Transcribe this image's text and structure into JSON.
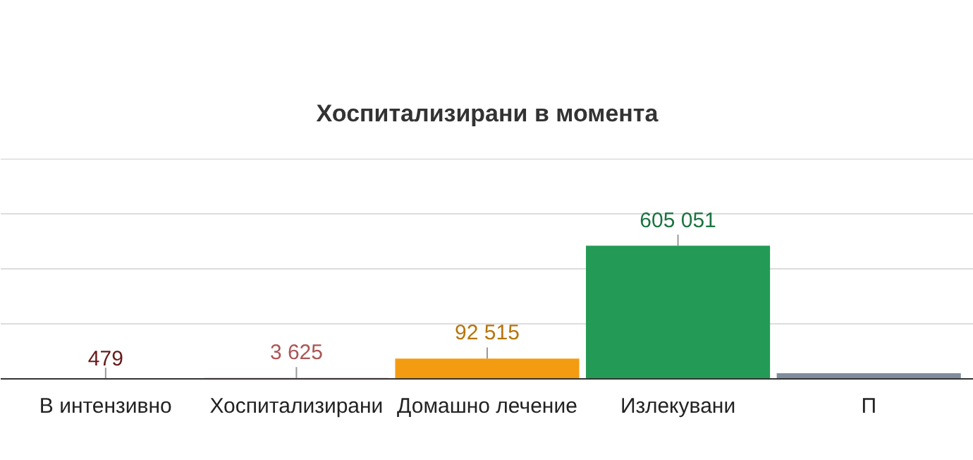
{
  "chart_data": {
    "type": "bar",
    "title": "Хоспитализирани в момента",
    "categories": [
      "В интензивно",
      "Хоспитализирани",
      "Домашно лечение",
      "Излекувани",
      "П"
    ],
    "values": [
      479,
      3625,
      92515,
      605051,
      26000
    ],
    "colors": [
      "#8b2323",
      "#e57373",
      "#f39c12",
      "#239b56",
      "#7f8c9d"
    ],
    "value_labels": [
      "479",
      "3 625",
      "92 515",
      "605 051",
      null
    ],
    "ylim": [
      0,
      1000000
    ],
    "yticks": [
      {
        "value": 0,
        "label": null
      },
      {
        "value": 250000,
        "label": null
      },
      {
        "value": 500000,
        "label": null
      },
      {
        "value": 750000,
        "label": null
      },
      {
        "value": 1000000,
        "label": null
      }
    ],
    "tick_labels": "x",
    "grid": "y"
  }
}
